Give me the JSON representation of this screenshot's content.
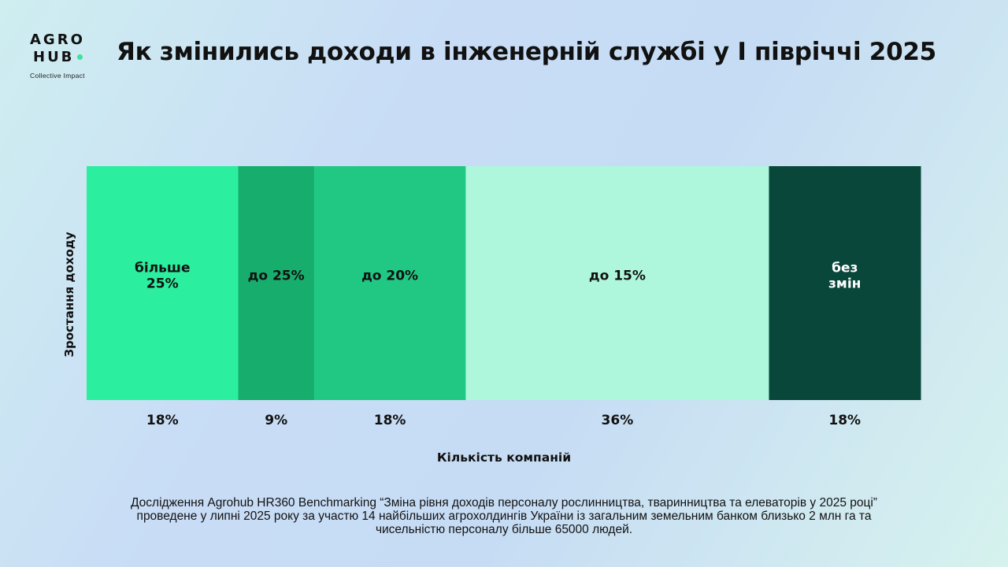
{
  "logo": {
    "line1": "AGRO",
    "line2": "HUB",
    "tagline": "Collective Impact",
    "dot_color": "#3ee39a"
  },
  "title": "Як змінились доходи в інженерній службі у І півріччі 2025",
  "chart_data": {
    "type": "bar",
    "orientation": "horizontal-stacked-100",
    "ylabel": "Зростання доходу",
    "xlabel": "Кількість компаній",
    "grid": false,
    "legend": "none",
    "segments": [
      {
        "label": [
          "більше",
          "25%"
        ],
        "value": 18,
        "value_label": "18%",
        "color": "#2bee9f",
        "text_color": "#111111"
      },
      {
        "label": [
          "до 25%"
        ],
        "value": 9,
        "value_label": "9%",
        "color": "#17ad6d",
        "text_color": "#111111"
      },
      {
        "label": [
          "до 20%"
        ],
        "value": 18,
        "value_label": "18%",
        "color": "#20c884",
        "text_color": "#111111"
      },
      {
        "label": [
          "до 15%"
        ],
        "value": 36,
        "value_label": "36%",
        "color": "#aef7dc",
        "text_color": "#111111"
      },
      {
        "label": [
          "без",
          "змін"
        ],
        "value": 18,
        "value_label": "18%",
        "color": "#08473a",
        "text_color": "#ffffff"
      }
    ]
  },
  "footnote": "Дослідження Agrohub HR360 Benchmarking “Зміна рівня доходів персоналу рослинництва, тваринництва та елеваторів у 2025 році” проведене у липні 2025 року за участю 14 найбільших агрохолдингів України із загальним земельним банком близько 2 млн га та чисельністю персоналу більше 65000 людей."
}
